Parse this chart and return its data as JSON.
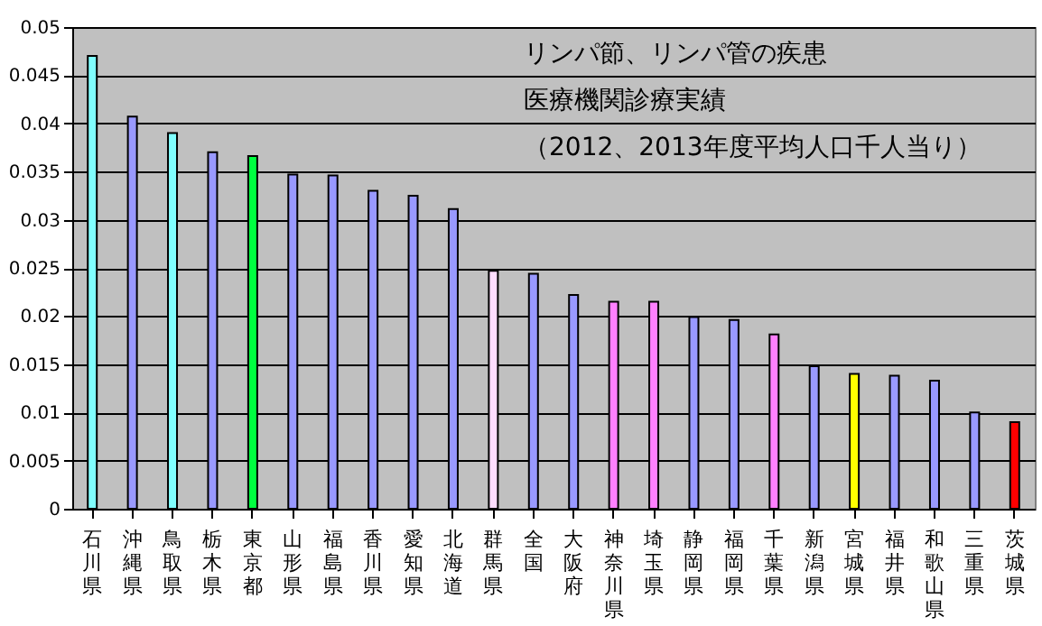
{
  "chart_data": {
    "type": "bar",
    "title": "リンパ節、リンパ管の疾患",
    "subtitle": "医療機関診療実績",
    "annotations": [
      "（2012、2013年度平均人口千人当り）"
    ],
    "categories": [
      "石川県",
      "沖縄県",
      "鳥取県",
      "栃木県",
      "東京都",
      "山形県",
      "福島県",
      "香川県",
      "愛知県",
      "北海道",
      "群馬県",
      "全国",
      "大阪府",
      "神奈川県",
      "埼玉県",
      "静岡県",
      "福岡県",
      "千葉県",
      "新潟県",
      "宮城県",
      "福井県",
      "和歌山県",
      "三重県",
      "茨城県"
    ],
    "values": [
      0.047,
      0.0407,
      0.039,
      0.037,
      0.0366,
      0.0347,
      0.0346,
      0.033,
      0.0325,
      0.0311,
      0.0247,
      0.0244,
      0.0222,
      0.0215,
      0.0215,
      0.0199,
      0.0196,
      0.0181,
      0.0148,
      0.014,
      0.0138,
      0.0133,
      0.01,
      0.009
    ],
    "colors": [
      "#80ffff",
      "#9999ff",
      "#80ffff",
      "#9999ff",
      "#00ff40",
      "#9999ff",
      "#9999ff",
      "#9999ff",
      "#9999ff",
      "#9999ff",
      "#ffddff",
      "#9999ff",
      "#9999ff",
      "#ff80ff",
      "#ff80ff",
      "#9999ff",
      "#9999ff",
      "#ff80ff",
      "#9999ff",
      "#ffff00",
      "#9999ff",
      "#9999ff",
      "#9999ff",
      "#ff0000"
    ],
    "ylim": [
      0,
      0.05
    ],
    "yticks": [
      0,
      0.005,
      0.01,
      0.015,
      0.02,
      0.025,
      0.03,
      0.035,
      0.04,
      0.045,
      0.05
    ],
    "grid": "y"
  }
}
